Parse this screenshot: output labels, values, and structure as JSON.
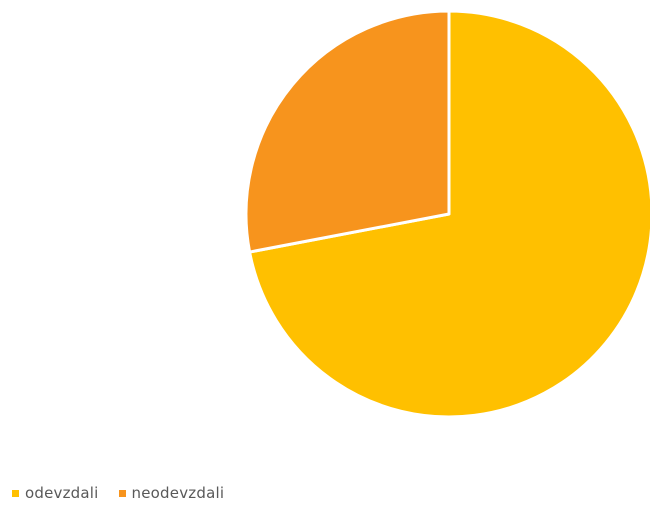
{
  "chart_data": {
    "type": "pie",
    "categories": [
      "odevzdali",
      "neodevzdali"
    ],
    "values": [
      72,
      28
    ],
    "colors": [
      "#FFC000",
      "#F7941D"
    ],
    "title": "",
    "legend_position": "bottom-left"
  },
  "legend": {
    "items": [
      {
        "label": "odevzdali",
        "color": "#FFC000"
      },
      {
        "label": "neodevzdali",
        "color": "#F7941D"
      }
    ]
  }
}
